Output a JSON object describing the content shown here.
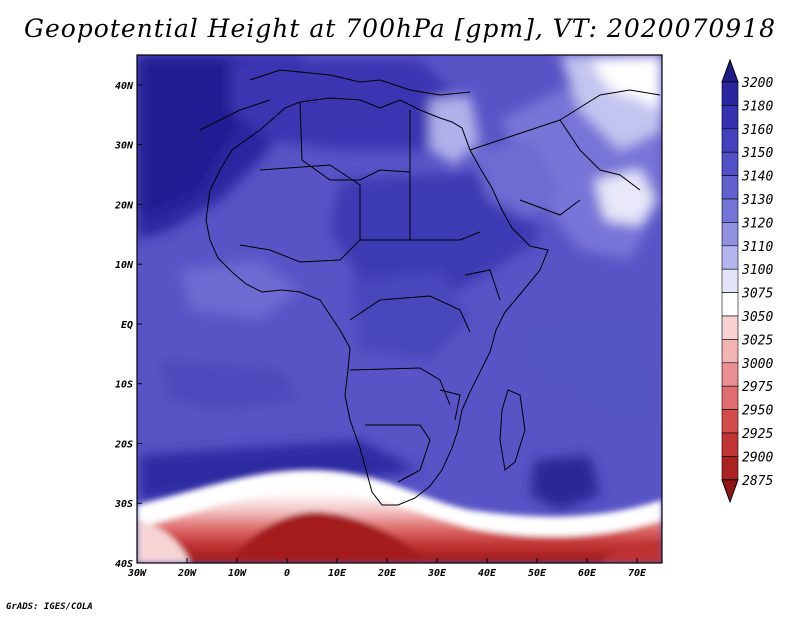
{
  "title": "Geopotential Height at 700hPa [gpm], VT: 2020070918",
  "credit": "GrADS: IGES/COLA",
  "map": {
    "lon_range": [
      -30,
      75
    ],
    "lat_range": [
      -40,
      45
    ],
    "lon_ticks": [
      "30W",
      "20W",
      "10W",
      "0",
      "10E",
      "20E",
      "30E",
      "40E",
      "50E",
      "60E",
      "70E"
    ],
    "lat_ticks": [
      "40S",
      "30S",
      "20S",
      "10S",
      "EQ",
      "10N",
      "20N",
      "30N",
      "40N"
    ],
    "region": "Africa",
    "overlay": "country borders and coastlines"
  },
  "colorbar": {
    "levels": [
      "3200",
      "3180",
      "3160",
      "3150",
      "3140",
      "3130",
      "3120",
      "3110",
      "3100",
      "3075",
      "3050",
      "3025",
      "3000",
      "2975",
      "2950",
      "2925",
      "2900",
      "2875"
    ],
    "colors": [
      "#1f1a8a",
      "#2a25a0",
      "#3531b0",
      "#4440be",
      "#5250c6",
      "#6160cc",
      "#7474d6",
      "#9090e0",
      "#b4b4ee",
      "#e4e4f8",
      "#ffffff",
      "#f8d2d2",
      "#f2b3b3",
      "#ea9090",
      "#e06e6e",
      "#d44d4d",
      "#c23434",
      "#ab2222",
      "#931616"
    ]
  }
}
